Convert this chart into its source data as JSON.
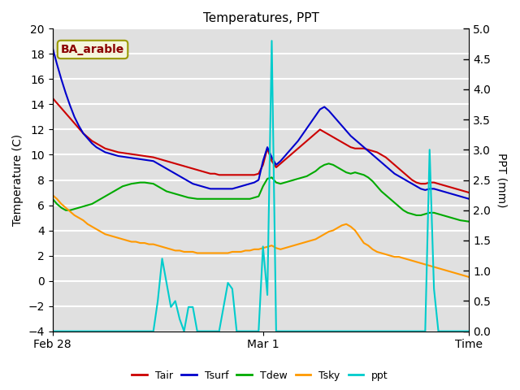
{
  "title": "Temperatures, PPT",
  "ylabel_left": "Temperature (C)",
  "ylabel_right": "PPT (mm)",
  "xlim": [
    0,
    95
  ],
  "ylim_left": [
    -4,
    20
  ],
  "ylim_right": [
    0.0,
    5.0
  ],
  "xtick_positions": [
    0,
    48,
    95
  ],
  "xtick_labels": [
    "Feb 28",
    "Mar 1",
    "Time"
  ],
  "yticks_left": [
    -4,
    -2,
    0,
    2,
    4,
    6,
    8,
    10,
    12,
    14,
    16,
    18,
    20
  ],
  "yticks_right": [
    0.0,
    0.5,
    1.0,
    1.5,
    2.0,
    2.5,
    3.0,
    3.5,
    4.0,
    4.5,
    5.0
  ],
  "annotation_text": "BA_arable",
  "annotation_color": "#8b0000",
  "annotation_bg": "#f5f5dc",
  "annotation_border": "#999900",
  "background_color": "#e0e0e0",
  "grid_color": "#ffffff",
  "colors": {
    "Tair": "#cc0000",
    "Tsurf": "#0000cc",
    "Tdew": "#00aa00",
    "Tsky": "#ff9900",
    "ppt": "#00cccc"
  },
  "Tair": [
    14.5,
    14.1,
    13.7,
    13.3,
    12.9,
    12.5,
    12.1,
    11.7,
    11.4,
    11.1,
    10.9,
    10.7,
    10.5,
    10.4,
    10.3,
    10.2,
    10.15,
    10.1,
    10.05,
    10.0,
    9.95,
    9.9,
    9.85,
    9.8,
    9.7,
    9.6,
    9.5,
    9.4,
    9.3,
    9.2,
    9.1,
    9.0,
    8.9,
    8.8,
    8.7,
    8.6,
    8.5,
    8.5,
    8.4,
    8.4,
    8.4,
    8.4,
    8.4,
    8.4,
    8.4,
    8.4,
    8.4,
    8.5,
    9.2,
    10.5,
    9.5,
    9.0,
    9.3,
    9.6,
    9.9,
    10.2,
    10.5,
    10.8,
    11.1,
    11.4,
    11.7,
    12.0,
    11.8,
    11.6,
    11.4,
    11.2,
    11.0,
    10.8,
    10.6,
    10.5,
    10.5,
    10.5,
    10.4,
    10.3,
    10.2,
    10.0,
    9.8,
    9.5,
    9.2,
    8.9,
    8.6,
    8.3,
    8.0,
    7.8,
    7.7,
    7.7,
    7.8,
    7.8,
    7.7,
    7.6,
    7.5,
    7.4,
    7.3,
    7.2,
    7.1,
    7.0
  ],
  "Tsurf": [
    18.5,
    17.2,
    16.0,
    14.9,
    13.9,
    13.0,
    12.3,
    11.7,
    11.3,
    10.9,
    10.6,
    10.4,
    10.2,
    10.1,
    10.0,
    9.9,
    9.85,
    9.8,
    9.75,
    9.7,
    9.65,
    9.6,
    9.55,
    9.5,
    9.3,
    9.1,
    8.9,
    8.7,
    8.5,
    8.3,
    8.1,
    7.9,
    7.7,
    7.6,
    7.5,
    7.4,
    7.3,
    7.3,
    7.3,
    7.3,
    7.3,
    7.3,
    7.4,
    7.5,
    7.6,
    7.7,
    7.8,
    8.0,
    9.5,
    10.6,
    9.8,
    9.2,
    9.5,
    9.9,
    10.3,
    10.7,
    11.1,
    11.6,
    12.1,
    12.6,
    13.1,
    13.6,
    13.8,
    13.5,
    13.1,
    12.7,
    12.3,
    11.9,
    11.5,
    11.2,
    10.9,
    10.6,
    10.3,
    10.0,
    9.7,
    9.4,
    9.1,
    8.8,
    8.5,
    8.3,
    8.1,
    7.9,
    7.7,
    7.5,
    7.3,
    7.2,
    7.3,
    7.3,
    7.2,
    7.1,
    7.0,
    6.9,
    6.8,
    6.7,
    6.6,
    6.5
  ],
  "Tdew": [
    6.5,
    6.1,
    5.8,
    5.6,
    5.6,
    5.7,
    5.8,
    5.9,
    6.0,
    6.1,
    6.3,
    6.5,
    6.7,
    6.9,
    7.1,
    7.3,
    7.5,
    7.6,
    7.7,
    7.75,
    7.8,
    7.8,
    7.75,
    7.7,
    7.5,
    7.3,
    7.1,
    7.0,
    6.9,
    6.8,
    6.7,
    6.6,
    6.55,
    6.5,
    6.5,
    6.5,
    6.5,
    6.5,
    6.5,
    6.5,
    6.5,
    6.5,
    6.5,
    6.5,
    6.5,
    6.5,
    6.6,
    6.7,
    7.5,
    8.1,
    8.2,
    7.8,
    7.7,
    7.8,
    7.9,
    8.0,
    8.1,
    8.2,
    8.3,
    8.5,
    8.7,
    9.0,
    9.2,
    9.3,
    9.2,
    9.0,
    8.8,
    8.6,
    8.5,
    8.6,
    8.5,
    8.4,
    8.2,
    7.9,
    7.5,
    7.1,
    6.8,
    6.5,
    6.2,
    5.9,
    5.6,
    5.4,
    5.3,
    5.2,
    5.2,
    5.3,
    5.4,
    5.4,
    5.3,
    5.2,
    5.1,
    5.0,
    4.9,
    4.8,
    4.75,
    4.7
  ],
  "Tsky": [
    6.8,
    6.5,
    6.1,
    5.8,
    5.5,
    5.2,
    5.0,
    4.8,
    4.5,
    4.3,
    4.1,
    3.9,
    3.7,
    3.6,
    3.5,
    3.4,
    3.3,
    3.2,
    3.1,
    3.1,
    3.0,
    3.0,
    2.9,
    2.9,
    2.8,
    2.7,
    2.6,
    2.5,
    2.4,
    2.4,
    2.3,
    2.3,
    2.3,
    2.2,
    2.2,
    2.2,
    2.2,
    2.2,
    2.2,
    2.2,
    2.2,
    2.3,
    2.3,
    2.3,
    2.4,
    2.4,
    2.5,
    2.5,
    2.6,
    2.7,
    2.8,
    2.6,
    2.5,
    2.6,
    2.7,
    2.8,
    2.9,
    3.0,
    3.1,
    3.2,
    3.3,
    3.5,
    3.7,
    3.9,
    4.0,
    4.2,
    4.4,
    4.5,
    4.3,
    4.0,
    3.5,
    3.0,
    2.8,
    2.5,
    2.3,
    2.2,
    2.1,
    2.0,
    1.9,
    1.9,
    1.8,
    1.7,
    1.6,
    1.5,
    1.4,
    1.3,
    1.2,
    1.1,
    1.0,
    0.9,
    0.8,
    0.7,
    0.6,
    0.5,
    0.4,
    0.3
  ],
  "ppt_mm": [
    0.0,
    0.0,
    0.0,
    0.0,
    0.0,
    0.0,
    0.0,
    0.0,
    0.0,
    0.0,
    0.0,
    0.0,
    0.0,
    0.0,
    0.0,
    0.0,
    0.0,
    0.0,
    0.0,
    0.0,
    0.0,
    0.0,
    0.0,
    0.0,
    0.5,
    1.2,
    0.8,
    0.4,
    0.5,
    0.2,
    0.0,
    0.4,
    0.4,
    0.0,
    0.0,
    0.0,
    0.0,
    0.0,
    0.0,
    0.4,
    0.8,
    0.7,
    0.0,
    0.0,
    0.0,
    0.0,
    0.0,
    0.0,
    1.4,
    0.6,
    4.8,
    0.0,
    0.0,
    0.0,
    0.0,
    0.0,
    0.0,
    0.0,
    0.0,
    0.0,
    0.0,
    0.0,
    0.0,
    0.0,
    0.0,
    0.0,
    0.0,
    0.0,
    0.0,
    0.0,
    0.0,
    0.0,
    0.0,
    0.0,
    0.0,
    0.0,
    0.0,
    0.0,
    0.0,
    0.0,
    0.0,
    0.0,
    0.0,
    0.0,
    0.0,
    0.0,
    3.0,
    0.7,
    0.0,
    0.0,
    0.0,
    0.0,
    0.0,
    0.0,
    0.0,
    0.0
  ]
}
